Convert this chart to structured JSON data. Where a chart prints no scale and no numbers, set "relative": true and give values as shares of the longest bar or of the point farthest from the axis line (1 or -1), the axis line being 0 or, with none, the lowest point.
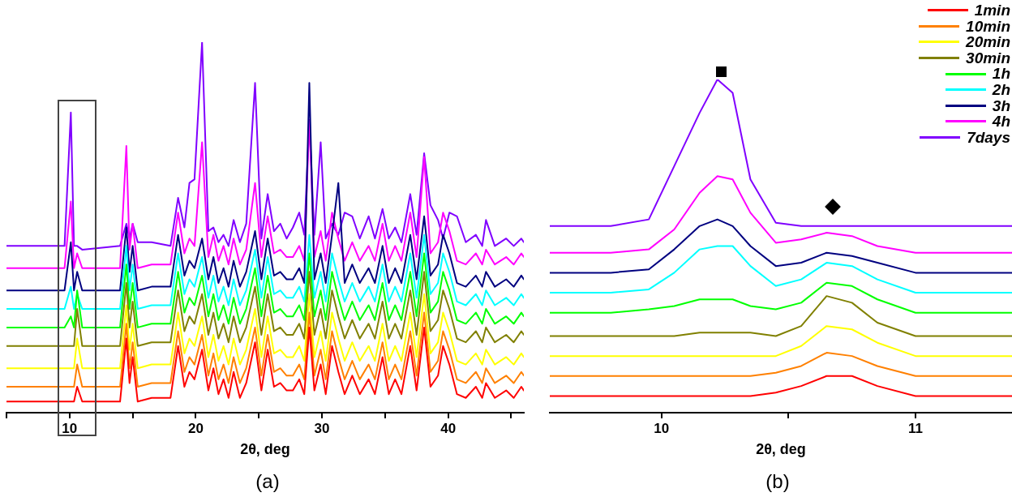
{
  "chart_data": [
    {
      "type": "line",
      "xlabel": "2θ, deg",
      "relative": true,
      "grid": false,
      "xlim": [
        5,
        46
      ],
      "xticks": [
        {
          "value": 5,
          "label": null
        },
        10,
        {
          "value": 15,
          "label": null
        },
        20,
        {
          "value": 25,
          "label": null
        },
        30,
        {
          "value": 35,
          "label": null
        },
        40,
        {
          "value": 45,
          "label": null
        }
      ],
      "annotations": [
        "(a)"
      ],
      "x": [
        5,
        9.6,
        10.1,
        10.35,
        10.6,
        11.0,
        14.0,
        14.5,
        14.75,
        15.0,
        15.4,
        16.5,
        18.0,
        18.6,
        19.1,
        19.5,
        19.9,
        20.5,
        21.0,
        21.4,
        21.8,
        22.2,
        22.6,
        23.0,
        23.5,
        24.0,
        24.7,
        25.2,
        25.7,
        26.2,
        26.7,
        27.2,
        27.7,
        28.2,
        28.6,
        29.0,
        29.4,
        29.9,
        30.3,
        30.8,
        31.3,
        31.8,
        32.4,
        33.0,
        33.7,
        34.2,
        34.8,
        35.3,
        35.8,
        36.3,
        37.0,
        37.5,
        38.1,
        38.6,
        39.2,
        39.6,
        40.1,
        40.7,
        41.4,
        42.2,
        42.7,
        43.0,
        43.7,
        44.6,
        45.2,
        45.8,
        46
      ],
      "series": [
        {
          "color": "#ff0000",
          "values": [
            0.03,
            0.03,
            0.03,
            0.03,
            0.07,
            0.03,
            0.03,
            0.2,
            0.08,
            0.15,
            0.03,
            0.04,
            0.04,
            0.18,
            0.07,
            0.11,
            0.09,
            0.17,
            0.06,
            0.12,
            0.05,
            0.09,
            0.04,
            0.11,
            0.04,
            0.08,
            0.19,
            0.06,
            0.17,
            0.07,
            0.08,
            0.06,
            0.06,
            0.09,
            0.05,
            0.23,
            0.06,
            0.13,
            0.05,
            0.18,
            0.11,
            0.05,
            0.1,
            0.05,
            0.09,
            0.05,
            0.15,
            0.05,
            0.09,
            0.05,
            0.18,
            0.06,
            0.23,
            0.07,
            0.1,
            0.18,
            0.13,
            0.05,
            0.04,
            0.07,
            0.04,
            0.08,
            0.04,
            0.06,
            0.04,
            0.07,
            0.06
          ]
        },
        {
          "color": "#ff8000",
          "values": [
            0.07,
            0.07,
            0.07,
            0.07,
            0.13,
            0.07,
            0.07,
            0.24,
            0.12,
            0.19,
            0.07,
            0.08,
            0.08,
            0.22,
            0.11,
            0.15,
            0.13,
            0.21,
            0.1,
            0.16,
            0.09,
            0.13,
            0.08,
            0.15,
            0.08,
            0.12,
            0.23,
            0.1,
            0.21,
            0.11,
            0.12,
            0.1,
            0.1,
            0.13,
            0.09,
            0.27,
            0.1,
            0.17,
            0.09,
            0.22,
            0.15,
            0.09,
            0.14,
            0.09,
            0.13,
            0.09,
            0.19,
            0.09,
            0.13,
            0.09,
            0.22,
            0.1,
            0.27,
            0.11,
            0.14,
            0.22,
            0.17,
            0.09,
            0.08,
            0.11,
            0.08,
            0.12,
            0.08,
            0.1,
            0.08,
            0.11,
            0.1
          ]
        },
        {
          "color": "#ffff00",
          "values": [
            0.12,
            0.12,
            0.12,
            0.12,
            0.2,
            0.12,
            0.12,
            0.29,
            0.17,
            0.24,
            0.12,
            0.13,
            0.13,
            0.27,
            0.16,
            0.2,
            0.18,
            0.26,
            0.15,
            0.21,
            0.14,
            0.18,
            0.13,
            0.2,
            0.13,
            0.17,
            0.28,
            0.15,
            0.26,
            0.16,
            0.17,
            0.15,
            0.15,
            0.18,
            0.14,
            0.32,
            0.15,
            0.22,
            0.14,
            0.27,
            0.2,
            0.14,
            0.19,
            0.14,
            0.18,
            0.14,
            0.24,
            0.14,
            0.18,
            0.14,
            0.27,
            0.15,
            0.32,
            0.16,
            0.19,
            0.27,
            0.22,
            0.14,
            0.13,
            0.16,
            0.13,
            0.17,
            0.13,
            0.15,
            0.13,
            0.16,
            0.15
          ]
        },
        {
          "color": "#808000",
          "values": [
            0.18,
            0.18,
            0.18,
            0.18,
            0.28,
            0.18,
            0.18,
            0.35,
            0.23,
            0.3,
            0.18,
            0.19,
            0.19,
            0.33,
            0.22,
            0.26,
            0.24,
            0.32,
            0.21,
            0.27,
            0.2,
            0.24,
            0.19,
            0.26,
            0.19,
            0.23,
            0.34,
            0.21,
            0.32,
            0.22,
            0.23,
            0.21,
            0.21,
            0.24,
            0.2,
            0.38,
            0.21,
            0.28,
            0.2,
            0.33,
            0.26,
            0.2,
            0.25,
            0.2,
            0.24,
            0.2,
            0.3,
            0.2,
            0.24,
            0.2,
            0.33,
            0.21,
            0.38,
            0.22,
            0.25,
            0.33,
            0.28,
            0.2,
            0.19,
            0.22,
            0.19,
            0.23,
            0.19,
            0.21,
            0.19,
            0.22,
            0.21
          ]
        },
        {
          "color": "#00ff00",
          "values": [
            0.23,
            0.23,
            0.26,
            0.23,
            0.33,
            0.23,
            0.23,
            0.4,
            0.28,
            0.35,
            0.23,
            0.24,
            0.24,
            0.38,
            0.27,
            0.31,
            0.29,
            0.37,
            0.26,
            0.32,
            0.25,
            0.29,
            0.24,
            0.31,
            0.24,
            0.28,
            0.39,
            0.26,
            0.37,
            0.27,
            0.28,
            0.26,
            0.26,
            0.29,
            0.25,
            0.43,
            0.26,
            0.33,
            0.25,
            0.38,
            0.31,
            0.25,
            0.3,
            0.25,
            0.29,
            0.25,
            0.35,
            0.25,
            0.29,
            0.25,
            0.38,
            0.26,
            0.43,
            0.27,
            0.3,
            0.38,
            0.33,
            0.25,
            0.24,
            0.27,
            0.24,
            0.28,
            0.24,
            0.26,
            0.24,
            0.27,
            0.26
          ]
        },
        {
          "color": "#00ffff",
          "values": [
            0.28,
            0.28,
            0.34,
            0.28,
            0.32,
            0.28,
            0.28,
            0.45,
            0.33,
            0.4,
            0.28,
            0.29,
            0.29,
            0.43,
            0.32,
            0.36,
            0.34,
            0.42,
            0.31,
            0.37,
            0.3,
            0.34,
            0.29,
            0.36,
            0.29,
            0.33,
            0.44,
            0.31,
            0.42,
            0.32,
            0.33,
            0.31,
            0.31,
            0.34,
            0.3,
            0.48,
            0.31,
            0.38,
            0.3,
            0.43,
            0.36,
            0.3,
            0.35,
            0.3,
            0.34,
            0.3,
            0.4,
            0.3,
            0.34,
            0.3,
            0.43,
            0.31,
            0.48,
            0.32,
            0.35,
            0.43,
            0.38,
            0.3,
            0.29,
            0.32,
            0.29,
            0.33,
            0.29,
            0.31,
            0.29,
            0.32,
            0.31
          ]
        },
        {
          "color": "#000080",
          "values": [
            0.33,
            0.33,
            0.46,
            0.33,
            0.38,
            0.33,
            0.33,
            0.5,
            0.38,
            0.45,
            0.33,
            0.34,
            0.34,
            0.48,
            0.37,
            0.41,
            0.39,
            0.47,
            0.36,
            0.42,
            0.35,
            0.39,
            0.34,
            0.41,
            0.34,
            0.38,
            0.49,
            0.36,
            0.47,
            0.37,
            0.38,
            0.36,
            0.36,
            0.39,
            0.35,
            0.89,
            0.36,
            0.43,
            0.35,
            0.48,
            0.62,
            0.35,
            0.4,
            0.35,
            0.39,
            0.35,
            0.45,
            0.35,
            0.39,
            0.35,
            0.48,
            0.36,
            0.53,
            0.37,
            0.4,
            0.48,
            0.43,
            0.35,
            0.34,
            0.37,
            0.34,
            0.38,
            0.34,
            0.36,
            0.34,
            0.37,
            0.36
          ]
        },
        {
          "color": "#ff00ff",
          "values": [
            0.39,
            0.39,
            0.57,
            0.39,
            0.43,
            0.39,
            0.39,
            0.72,
            0.44,
            0.51,
            0.39,
            0.4,
            0.4,
            0.54,
            0.43,
            0.47,
            0.45,
            0.73,
            0.42,
            0.48,
            0.41,
            0.45,
            0.4,
            0.47,
            0.4,
            0.44,
            0.62,
            0.42,
            0.53,
            0.43,
            0.44,
            0.42,
            0.42,
            0.45,
            0.41,
            0.79,
            0.42,
            0.49,
            0.41,
            0.54,
            0.47,
            0.41,
            0.46,
            0.41,
            0.45,
            0.41,
            0.51,
            0.41,
            0.45,
            0.41,
            0.54,
            0.42,
            0.69,
            0.43,
            0.46,
            0.54,
            0.49,
            0.41,
            0.4,
            0.43,
            0.4,
            0.44,
            0.4,
            0.42,
            0.4,
            0.43,
            0.42
          ]
        },
        {
          "color": "#8000ff",
          "values": [
            0.45,
            0.45,
            0.81,
            0.45,
            0.45,
            0.44,
            0.45,
            0.51,
            0.47,
            0.51,
            0.46,
            0.46,
            0.45,
            0.58,
            0.5,
            0.62,
            0.63,
            1,
            0.49,
            0.5,
            0.46,
            0.48,
            0.45,
            0.52,
            0.46,
            0.51,
            0.89,
            0.47,
            0.59,
            0.49,
            0.51,
            0.47,
            0.5,
            0.54,
            0.48,
            0.79,
            0.48,
            0.73,
            0.47,
            0.51,
            0.48,
            0.54,
            0.53,
            0.47,
            0.53,
            0.47,
            0.55,
            0.47,
            0.5,
            0.46,
            0.59,
            0.48,
            0.7,
            0.56,
            0.52,
            0.47,
            0.54,
            0.53,
            0.46,
            0.48,
            0.45,
            0.52,
            0.45,
            0.47,
            0.45,
            0.47,
            0.46
          ]
        }
      ]
    },
    {
      "type": "line",
      "xlabel": "2θ, deg",
      "relative": true,
      "grid": false,
      "legend": "top right",
      "xlim": [
        9.56,
        11.38
      ],
      "xticks": [
        10,
        {
          "value": 10.5,
          "label": null
        },
        11
      ],
      "annotations": [
        "(b)"
      ],
      "x": [
        9.56,
        9.8,
        9.95,
        10.05,
        10.15,
        10.22,
        10.28,
        10.35,
        10.45,
        10.55,
        10.65,
        10.75,
        10.85,
        11.0,
        11.38
      ],
      "series": [
        {
          "name": "1min",
          "color": "#ff0000",
          "values": [
            0.05,
            0.05,
            0.05,
            0.05,
            0.05,
            0.05,
            0.05,
            0.05,
            0.06,
            0.08,
            0.11,
            0.11,
            0.08,
            0.05,
            0.05
          ]
        },
        {
          "name": "10min",
          "color": "#ff8000",
          "values": [
            0.11,
            0.11,
            0.11,
            0.11,
            0.11,
            0.11,
            0.11,
            0.11,
            0.12,
            0.14,
            0.18,
            0.17,
            0.14,
            0.11,
            0.11
          ]
        },
        {
          "name": "20min",
          "color": "#ffff00",
          "values": [
            0.17,
            0.17,
            0.17,
            0.17,
            0.17,
            0.17,
            0.17,
            0.17,
            0.17,
            0.2,
            0.26,
            0.25,
            0.21,
            0.17,
            0.17
          ]
        },
        {
          "name": "30min",
          "color": "#808000",
          "values": [
            0.23,
            0.23,
            0.23,
            0.23,
            0.24,
            0.24,
            0.24,
            0.24,
            0.23,
            0.26,
            0.35,
            0.33,
            0.27,
            0.23,
            0.23
          ]
        },
        {
          "name": "1h",
          "color": "#00ff00",
          "values": [
            0.3,
            0.3,
            0.31,
            0.32,
            0.34,
            0.34,
            0.34,
            0.32,
            0.31,
            0.33,
            0.39,
            0.38,
            0.34,
            0.3,
            0.3
          ]
        },
        {
          "name": "2h",
          "color": "#00ffff",
          "values": [
            0.36,
            0.36,
            0.37,
            0.42,
            0.49,
            0.5,
            0.5,
            0.44,
            0.38,
            0.4,
            0.45,
            0.44,
            0.4,
            0.36,
            0.36
          ]
        },
        {
          "name": "3h",
          "color": "#000080",
          "values": [
            0.42,
            0.42,
            0.43,
            0.49,
            0.56,
            0.58,
            0.56,
            0.5,
            0.44,
            0.45,
            0.48,
            0.47,
            0.45,
            0.42,
            0.42
          ]
        },
        {
          "name": "4h",
          "color": "#ff00ff",
          "values": [
            0.48,
            0.48,
            0.49,
            0.55,
            0.66,
            0.71,
            0.7,
            0.6,
            0.51,
            0.52,
            0.54,
            0.53,
            0.5,
            0.48,
            0.48
          ]
        },
        {
          "name": "7days",
          "color": "#8000ff",
          "values": [
            0.56,
            0.56,
            0.58,
            0.74,
            0.9,
            1.0,
            0.96,
            0.7,
            0.57,
            0.56,
            0.56,
            0.56,
            0.56,
            0.56,
            0.56
          ]
        }
      ]
    }
  ]
}
